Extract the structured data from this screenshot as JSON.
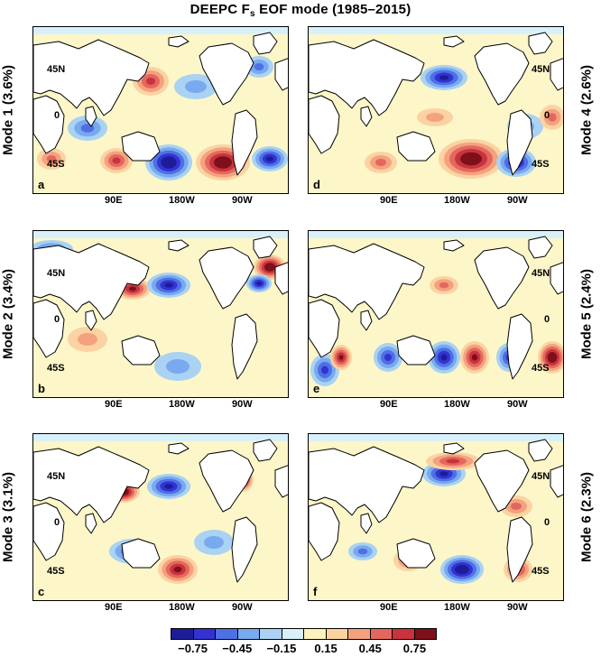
{
  "title": {
    "main": "DEEPC F",
    "sub": "s",
    "rest": " EOF mode (1985–2015)"
  },
  "lat_ticks": [
    "45N",
    "0",
    "45S"
  ],
  "lon_ticks": [
    "90E",
    "180W",
    "90W"
  ],
  "panels": [
    {
      "letter": "a",
      "mode": "Mode 1 (3.6%)"
    },
    {
      "letter": "d",
      "mode": "Mode 4 (2.6%)"
    },
    {
      "letter": "b",
      "mode": "Mode 2 (3.4%)"
    },
    {
      "letter": "e",
      "mode": "Mode 5 (2.4%)"
    },
    {
      "letter": "c",
      "mode": "Mode 3 (3.1%)"
    },
    {
      "letter": "f",
      "mode": "Mode 6 (2.3%)"
    }
  ],
  "colorbar": {
    "ticks": [
      "−0.75",
      "−0.45",
      "−0.15",
      "0.15",
      "0.45",
      "0.75"
    ],
    "colors": [
      "#1d1d9a",
      "#3333d1",
      "#4f6fe6",
      "#79a9ee",
      "#a9d2f3",
      "#d8f0fa",
      "#fdf2bd",
      "#fbd3a2",
      "#f4a27e",
      "#e4675e",
      "#c8333d",
      "#7e101a"
    ]
  }
}
